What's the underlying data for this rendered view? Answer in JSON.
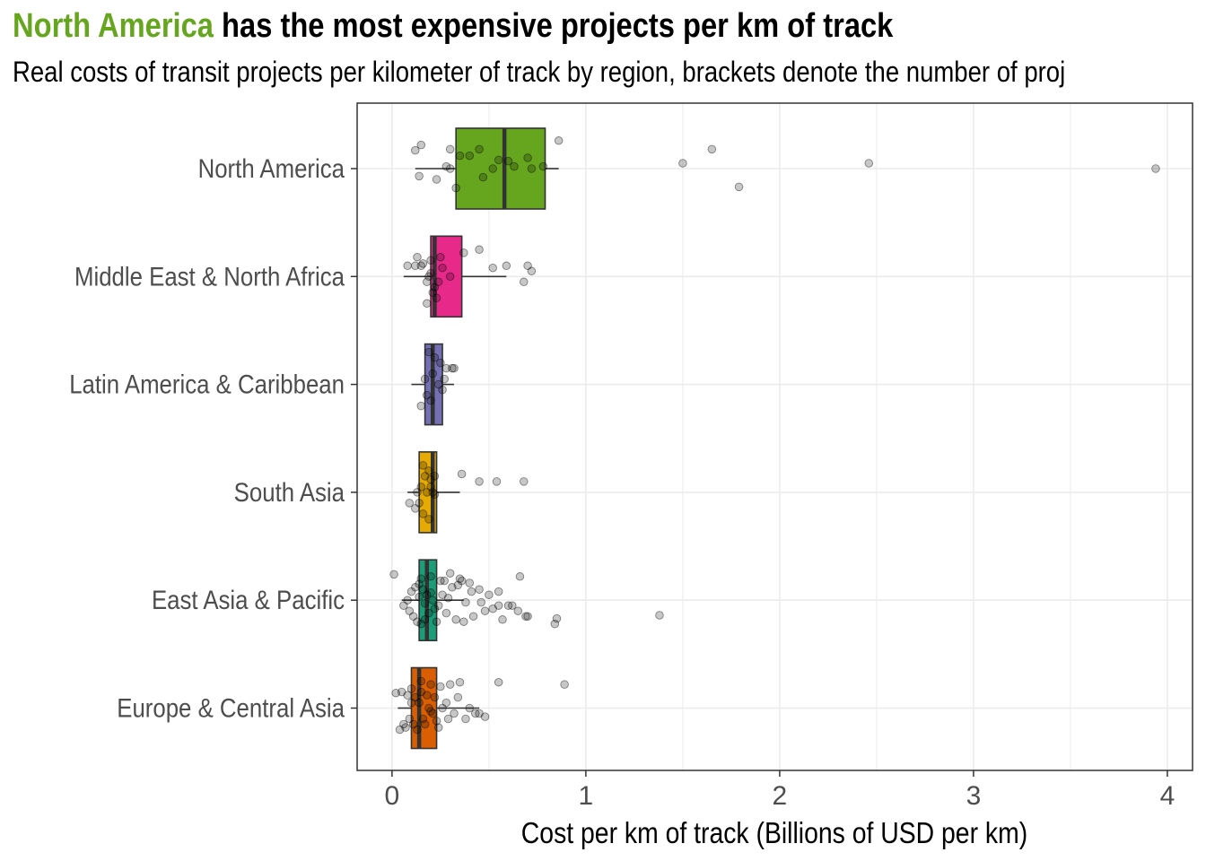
{
  "title": {
    "highlight": "North America",
    "rest": " has the most expensive projects per km of track"
  },
  "subtitle": "Real costs of transit projects per kilometer of track by region, brackets denote the number of proj",
  "chart_data": {
    "type": "boxplot",
    "orientation": "horizontal",
    "xlabel": "Cost per km of track (Billions of USD per km)",
    "ylabel": "",
    "xlim": [
      -0.18,
      4.13
    ],
    "x_ticks": [
      0,
      1,
      2,
      3,
      4
    ],
    "x_tick_labels": [
      "0",
      "1",
      "2",
      "3",
      "4"
    ],
    "grid": true,
    "categories": [
      "North America",
      "Middle East & North Africa",
      "Latin America & Caribbean",
      "South Asia",
      "East Asia & Pacific",
      "Europe & Central Asia"
    ],
    "colors": [
      "#66a61e",
      "#e7298a",
      "#7570b3",
      "#e6ab02",
      "#1b9e77",
      "#d95f02"
    ],
    "boxes": [
      {
        "name": "North America",
        "whisker_low": 0.12,
        "q1": 0.33,
        "median": 0.58,
        "q3": 0.79,
        "whisker_high": 0.86
      },
      {
        "name": "Middle East & North Africa",
        "whisker_low": 0.06,
        "q1": 0.2,
        "median": 0.22,
        "q3": 0.36,
        "whisker_high": 0.59
      },
      {
        "name": "Latin America & Caribbean",
        "whisker_low": 0.1,
        "q1": 0.17,
        "median": 0.21,
        "q3": 0.26,
        "whisker_high": 0.32
      },
      {
        "name": "South Asia",
        "whisker_low": 0.08,
        "q1": 0.14,
        "median": 0.21,
        "q3": 0.23,
        "whisker_high": 0.35
      },
      {
        "name": "East Asia & Pacific",
        "whisker_low": 0.05,
        "q1": 0.14,
        "median": 0.18,
        "q3": 0.23,
        "whisker_high": 0.37
      },
      {
        "name": "Europe & Central Asia",
        "whisker_low": 0.03,
        "q1": 0.1,
        "median": 0.14,
        "q3": 0.23,
        "whisker_high": 0.45
      }
    ],
    "points": [
      {
        "name": "North America",
        "x": [
          0.86,
          0.3,
          0.35,
          0.45,
          0.23,
          0.14,
          0.3,
          0.7,
          0.6,
          0.52,
          0.55,
          0.63,
          0.72,
          0.33,
          0.47,
          0.28,
          0.12,
          0.15,
          1.5,
          1.65,
          1.79,
          2.46,
          3.94,
          0.78,
          0.4
        ],
        "y": [
          0.26,
          0.18,
          0.12,
          0.18,
          -0.1,
          -0.07,
          0.0,
          0.1,
          0.07,
          0.0,
          0.08,
          0.02,
          0.0,
          -0.18,
          -0.08,
          0.02,
          0.17,
          0.22,
          0.05,
          0.18,
          -0.17,
          0.05,
          0.0,
          0.02,
          0.12
        ]
      },
      {
        "name": "Middle East & North Africa",
        "x": [
          0.2,
          0.25,
          0.37,
          0.45,
          0.52,
          0.59,
          0.72,
          0.7,
          0.68,
          0.22,
          0.18,
          0.15,
          0.08,
          0.12,
          0.19,
          0.21,
          0.23,
          0.24,
          0.18,
          0.26,
          0.3,
          0.2,
          0.16,
          0.13
        ],
        "y": [
          0.15,
          0.18,
          0.22,
          0.25,
          0.08,
          0.1,
          0.05,
          0.1,
          -0.05,
          -0.1,
          -0.05,
          0.1,
          0.1,
          0.1,
          0.0,
          -0.15,
          -0.2,
          -0.05,
          -0.25,
          0.08,
          0.0,
          0.03,
          0.12,
          0.18
        ]
      },
      {
        "name": "Latin America & Caribbean",
        "x": [
          0.19,
          0.22,
          0.25,
          0.28,
          0.32,
          0.31,
          0.21,
          0.17,
          0.24,
          0.26,
          0.18,
          0.2,
          0.15,
          0.27
        ],
        "y": [
          0.3,
          0.25,
          0.2,
          0.15,
          0.15,
          0.15,
          0.1,
          0.05,
          0.0,
          -0.05,
          -0.1,
          -0.15,
          -0.2,
          0.05
        ]
      },
      {
        "name": "South Asia",
        "x": [
          0.16,
          0.19,
          0.17,
          0.2,
          0.22,
          0.36,
          0.45,
          0.54,
          0.68,
          0.15,
          0.18,
          0.22,
          0.21,
          0.09,
          0.12,
          0.16,
          0.19,
          0.14,
          0.2,
          0.13
        ],
        "y": [
          0.25,
          0.2,
          0.15,
          0.12,
          0.15,
          0.17,
          0.1,
          0.1,
          0.1,
          0.05,
          0.0,
          -0.02,
          0.0,
          -0.1,
          -0.15,
          -0.2,
          -0.25,
          -0.1,
          0.05,
          0.0
        ]
      },
      {
        "name": "East Asia & Pacific",
        "x": [
          0.01,
          0.15,
          0.2,
          0.25,
          0.3,
          0.35,
          0.4,
          0.45,
          0.5,
          0.55,
          0.6,
          0.65,
          0.7,
          0.66,
          0.85,
          0.84,
          0.69,
          1.38,
          0.55,
          0.48,
          0.42,
          0.37,
          0.33,
          0.28,
          0.24,
          0.21,
          0.18,
          0.16,
          0.14,
          0.12,
          0.1,
          0.08,
          0.06,
          0.09,
          0.11,
          0.13,
          0.15,
          0.17,
          0.19,
          0.22,
          0.26,
          0.31,
          0.36,
          0.41,
          0.46,
          0.52,
          0.57,
          0.62,
          0.29,
          0.38,
          0.34,
          0.27,
          0.23,
          0.2,
          0.17,
          0.14
        ],
        "y": [
          0.24,
          0.2,
          0.22,
          0.18,
          0.25,
          0.2,
          0.16,
          0.1,
          0.05,
          0.08,
          -0.05,
          -0.1,
          -0.15,
          0.22,
          -0.17,
          -0.22,
          -0.15,
          -0.14,
          -0.05,
          -0.1,
          -0.15,
          -0.2,
          -0.18,
          -0.12,
          -0.05,
          0.0,
          0.05,
          0.1,
          0.15,
          0.12,
          0.08,
          0.0,
          -0.05,
          -0.1,
          -0.15,
          -0.2,
          -0.22,
          -0.18,
          -0.12,
          -0.08,
          0.05,
          0.12,
          0.18,
          0.08,
          -0.02,
          -0.08,
          -0.18,
          -0.05,
          0.02,
          -0.02,
          0.14,
          0.18,
          -0.2,
          0.07,
          -0.03,
          0.03
        ]
      },
      {
        "name": "Europe & Central Asia",
        "x": [
          0.89,
          0.55,
          0.35,
          0.3,
          0.25,
          0.2,
          0.15,
          0.1,
          0.05,
          0.08,
          0.12,
          0.18,
          0.22,
          0.28,
          0.34,
          0.4,
          0.45,
          0.48,
          0.43,
          0.38,
          0.32,
          0.26,
          0.21,
          0.16,
          0.11,
          0.07,
          0.04,
          0.06,
          0.09,
          0.13,
          0.17,
          0.23,
          0.29,
          0.14,
          0.19,
          0.24,
          0.02,
          0.1,
          0.15,
          0.2
        ],
        "y": [
          0.22,
          0.24,
          0.24,
          0.22,
          0.2,
          0.22,
          0.25,
          0.18,
          0.15,
          0.12,
          0.1,
          0.12,
          0.1,
          0.05,
          0.1,
          0.0,
          -0.05,
          -0.08,
          -0.05,
          -0.1,
          -0.05,
          0.0,
          -0.05,
          -0.1,
          -0.15,
          -0.18,
          -0.2,
          -0.15,
          -0.1,
          -0.2,
          -0.15,
          -0.12,
          -0.1,
          0.05,
          0.0,
          -0.18,
          0.14,
          0.05,
          0.15,
          -0.03
        ]
      }
    ]
  }
}
